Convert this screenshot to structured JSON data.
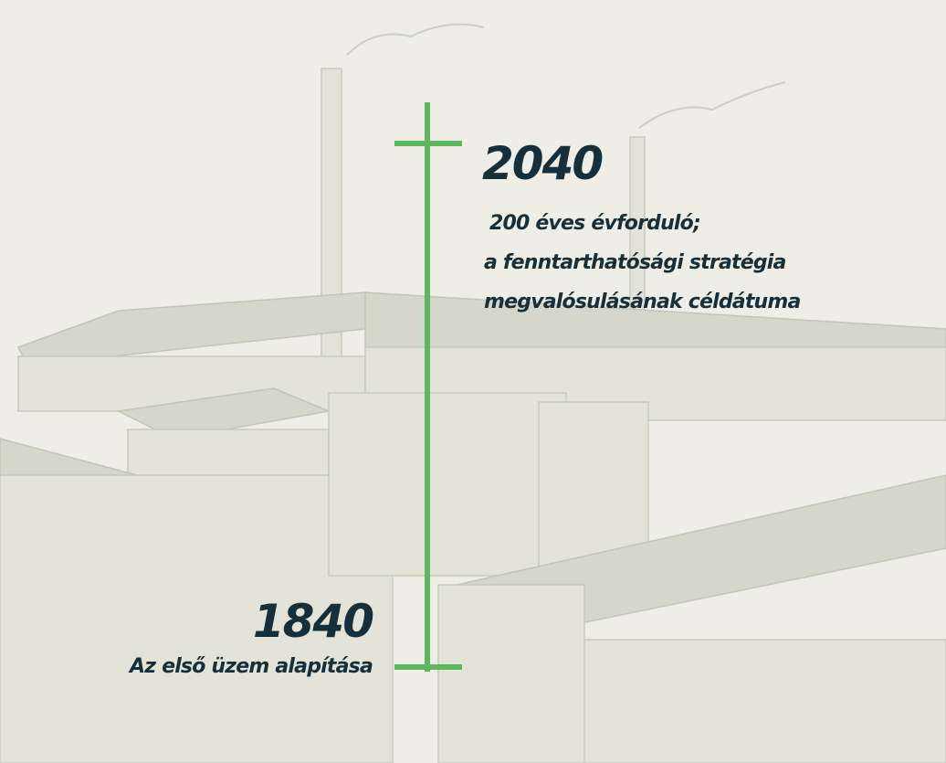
{
  "timeline": {
    "events": [
      {
        "year": "2040",
        "lines": [
          "200 éves évforduló;",
          "a fenntarthatósági stratégia",
          "megvalósulásának céldátuma"
        ]
      },
      {
        "year": "1840",
        "lines": [
          "Az első üzem alapítása"
        ]
      }
    ]
  }
}
